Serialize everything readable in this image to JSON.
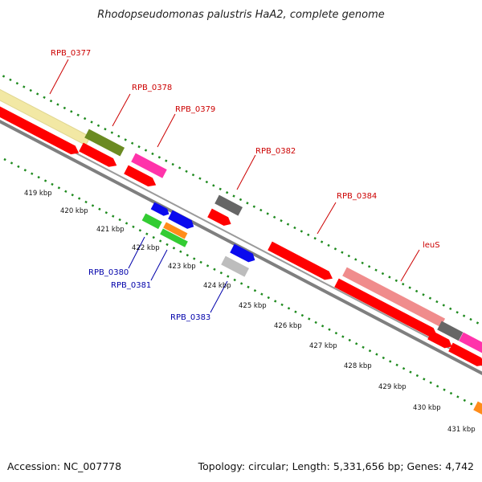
{
  "title": "Rhodopseudomonas palustris HaA2, complete genome",
  "footer": {
    "accession": "Accession: NC_007778",
    "summary": "Topology: circular; Length: 5,331,656 bp; Genes: 4,742"
  },
  "scale_labels": [
    "419 kbp",
    "420 kbp",
    "421 kbp",
    "422 kbp",
    "423 kbp",
    "424 kbp",
    "425 kbp",
    "426 kbp",
    "427 kbp",
    "428 kbp",
    "429 kbp",
    "430 kbp",
    "431 kbp"
  ],
  "gene_labels": [
    {
      "text": "RPB_0377",
      "strand": "forward"
    },
    {
      "text": "RPB_0378",
      "strand": "forward"
    },
    {
      "text": "RPB_0379",
      "strand": "forward"
    },
    {
      "text": "RPB_0382",
      "strand": "forward"
    },
    {
      "text": "RPB_0384",
      "strand": "forward"
    },
    {
      "text": "leuS",
      "strand": "forward"
    },
    {
      "text": "RPB_0380",
      "strand": "reverse"
    },
    {
      "text": "RPB_0381",
      "strand": "reverse"
    },
    {
      "text": "RPB_0383",
      "strand": "reverse"
    }
  ],
  "colors": {
    "forward_label": "#cc0000",
    "reverse_label": "#0000aa",
    "backbone": "#7f7f7f",
    "tick": "#1e8a1e",
    "cds": "#ff0000",
    "cog_yellow": "#f2e8a4",
    "cog_olive": "#6b8a22",
    "cog_magenta": "#ff33aa",
    "cog_gray": "#666666",
    "cog_salmon": "#f08c8c",
    "cog_blue": "#0a0aee",
    "cog_green": "#33cc33",
    "cog_orange": "#ff8c1a",
    "cog_silver": "#bdbdbd"
  }
}
